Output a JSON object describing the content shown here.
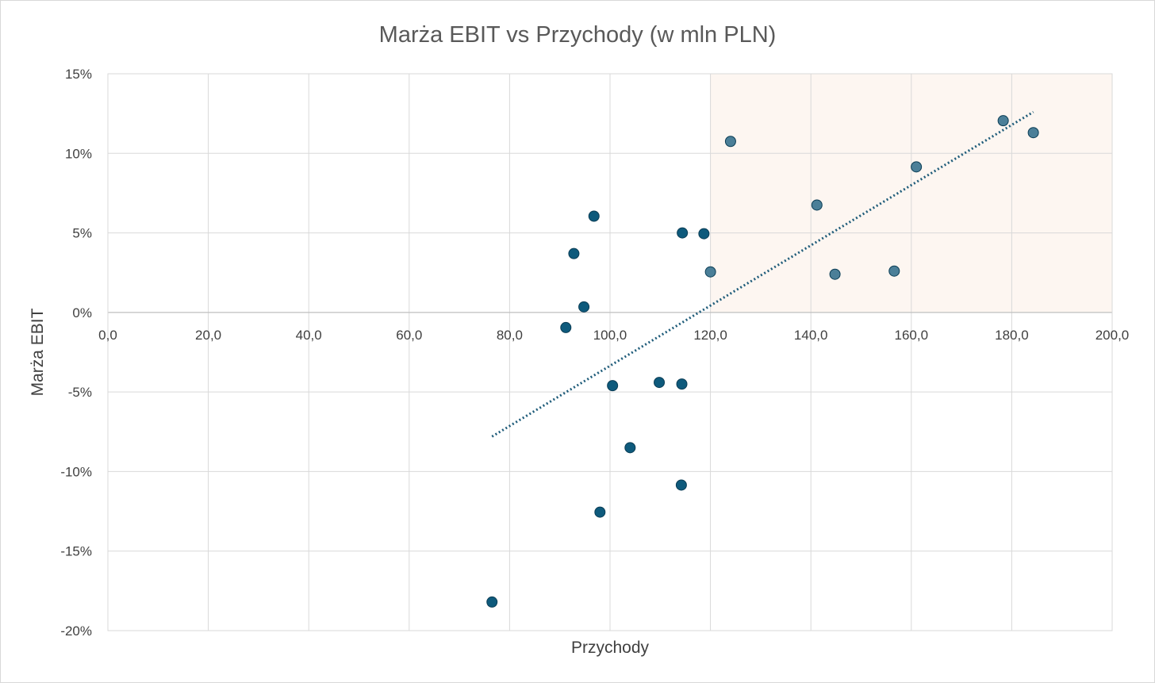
{
  "chart_data": {
    "type": "scatter",
    "title": "Marża EBIT vs Przychody (w mln PLN)",
    "xlabel": "Przychody",
    "ylabel": "Marża EBIT",
    "xlim": [
      0,
      200
    ],
    "ylim": [
      -20,
      15
    ],
    "x_ticks": [
      0,
      20,
      40,
      60,
      80,
      100,
      120,
      140,
      160,
      180,
      200
    ],
    "x_tick_labels": [
      "0,0",
      "20,0",
      "40,0",
      "60,0",
      "80,0",
      "100,0",
      "120,0",
      "140,0",
      "160,0",
      "180,0",
      "200,0"
    ],
    "y_ticks": [
      15,
      10,
      5,
      0,
      -5,
      -10,
      -15,
      -20
    ],
    "y_tick_labels": [
      "15%",
      "10%",
      "5%",
      "0%",
      "-5%",
      "-10%",
      "-15%",
      "-20%"
    ],
    "grid": true,
    "legend": "none",
    "highlight_region": {
      "x": [
        120,
        200
      ],
      "y": [
        0,
        15
      ],
      "color": "#fdf6f1"
    },
    "series": [
      {
        "color": "#0e5a7c",
        "points": [
          {
            "x": 76.5,
            "y": -18.2
          },
          {
            "x": 91.2,
            "y": -0.95
          },
          {
            "x": 92.8,
            "y": 3.7
          },
          {
            "x": 94.8,
            "y": 0.35
          },
          {
            "x": 96.8,
            "y": 6.05
          },
          {
            "x": 98.0,
            "y": -12.55
          },
          {
            "x": 100.5,
            "y": -4.6
          },
          {
            "x": 104.0,
            "y": -8.5
          },
          {
            "x": 109.8,
            "y": -4.4
          },
          {
            "x": 114.2,
            "y": -10.85
          },
          {
            "x": 114.3,
            "y": -4.5
          },
          {
            "x": 114.4,
            "y": 5.0
          },
          {
            "x": 118.7,
            "y": 4.95
          }
        ]
      },
      {
        "color": "#4b7f98",
        "points": [
          {
            "x": 120.0,
            "y": 2.55
          },
          {
            "x": 124.0,
            "y": 10.75
          },
          {
            "x": 141.2,
            "y": 6.75
          },
          {
            "x": 144.8,
            "y": 2.4
          },
          {
            "x": 156.6,
            "y": 2.6
          },
          {
            "x": 161.0,
            "y": 9.15
          },
          {
            "x": 178.3,
            "y": 12.05
          },
          {
            "x": 184.3,
            "y": 11.3
          }
        ]
      }
    ],
    "trendline": {
      "type": "linear",
      "color": "#1f5c7a",
      "from": {
        "x": 76.5,
        "y": -7.8
      },
      "to": {
        "x": 184.3,
        "y": 12.6
      }
    }
  }
}
